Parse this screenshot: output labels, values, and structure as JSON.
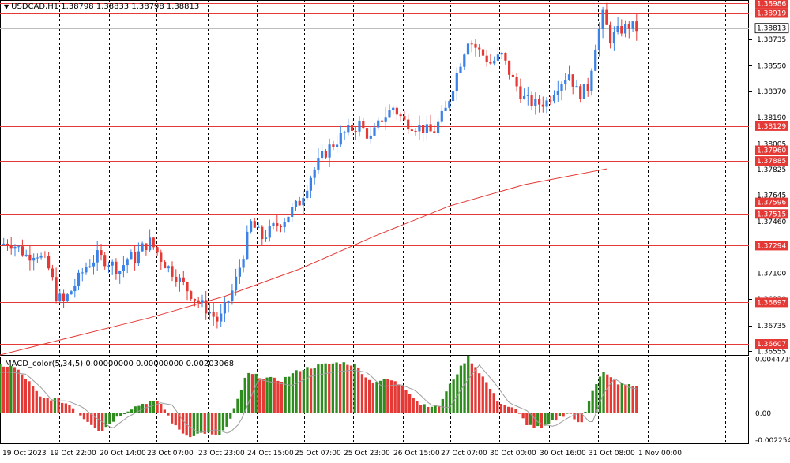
{
  "header": {
    "symbol_line": "USDCAD,H1 1.38798 1.38833 1.38798 1.38813",
    "menu_icon": "triangle-down-icon"
  },
  "indicator": {
    "label": "MACD_color(5,34,5) 0.00000000 0.00000000 0.00203068"
  },
  "colors": {
    "up_candle": "#3b82e6",
    "down_candle": "#e53935",
    "level_line": "#e53935",
    "ma_line": "#e53935",
    "macd_up": "#2e8b1e",
    "macd_down": "#e53935",
    "signal_line": "#9e9e9e",
    "grid": "#000000"
  },
  "chart_data": [
    {
      "type": "candlestick",
      "symbol": "USDCAD",
      "timeframe": "H1",
      "price_ticks": [
        "1.38735",
        "1.38550",
        "1.38370",
        "1.38190",
        "1.38005",
        "1.37825",
        "1.37645",
        "1.37460",
        "1.37280",
        "1.37100",
        "1.36920",
        "1.36735",
        "1.36555"
      ],
      "ylim": [
        1.3653,
        1.3901
      ],
      "current_price": "1.38813",
      "level_lines": [
        "1.38986",
        "1.38919",
        "1.38129",
        "1.37960",
        "1.37885",
        "1.37596",
        "1.37515",
        "1.37294",
        "1.36897",
        "1.36607"
      ],
      "time_labels": [
        "19 Oct 2023",
        "19 Oct 22:00",
        "20 Oct 14:00",
        "23 Oct 07:00",
        "23 Oct 23:00",
        "24 Oct 15:00",
        "25 Oct 07:00",
        "25 Oct 23:00",
        "26 Oct 15:00",
        "27 Oct 07:00",
        "30 Oct 00:00",
        "30 Oct 16:00",
        "31 Oct 08:00",
        "1 Nov 00:00"
      ],
      "moving_average": {
        "points": [
          [
            0.0,
            1.3653
          ],
          [
            0.1,
            1.3666
          ],
          [
            0.2,
            1.3679
          ],
          [
            0.3,
            1.3694
          ],
          [
            0.4,
            1.3713
          ],
          [
            0.5,
            1.3736
          ],
          [
            0.6,
            1.3757
          ],
          [
            0.7,
            1.3772
          ],
          [
            0.81,
            1.3783
          ]
        ]
      },
      "price_path": [
        [
          0.0,
          1.373
        ],
        [
          0.012,
          1.3732
        ],
        [
          0.024,
          1.3728
        ],
        [
          0.036,
          1.3722
        ],
        [
          0.048,
          1.3725
        ],
        [
          0.06,
          1.3718
        ],
        [
          0.068,
          1.371
        ],
        [
          0.074,
          1.3695
        ],
        [
          0.085,
          1.369
        ],
        [
          0.1,
          1.3702
        ],
        [
          0.115,
          1.3715
        ],
        [
          0.13,
          1.3722
        ],
        [
          0.145,
          1.3718
        ],
        [
          0.16,
          1.3712
        ],
        [
          0.172,
          1.3722
        ],
        [
          0.18,
          1.372
        ],
        [
          0.19,
          1.3728
        ],
        [
          0.2,
          1.3732
        ],
        [
          0.207,
          1.3727
        ],
        [
          0.218,
          1.3718
        ],
        [
          0.232,
          1.371
        ],
        [
          0.248,
          1.37
        ],
        [
          0.265,
          1.369
        ],
        [
          0.278,
          1.3684
        ],
        [
          0.292,
          1.3676
        ],
        [
          0.3,
          1.3685
        ],
        [
          0.312,
          1.37
        ],
        [
          0.322,
          1.3718
        ],
        [
          0.335,
          1.3745
        ],
        [
          0.35,
          1.3735
        ],
        [
          0.365,
          1.3742
        ],
        [
          0.38,
          1.3748
        ],
        [
          0.4,
          1.376
        ],
        [
          0.415,
          1.3778
        ],
        [
          0.428,
          1.379
        ],
        [
          0.44,
          1.3798
        ],
        [
          0.46,
          1.3808
        ],
        [
          0.48,
          1.3814
        ],
        [
          0.495,
          1.3804
        ],
        [
          0.51,
          1.3818
        ],
        [
          0.525,
          1.3826
        ],
        [
          0.54,
          1.3816
        ],
        [
          0.56,
          1.3812
        ],
        [
          0.578,
          1.3808
        ],
        [
          0.595,
          1.3824
        ],
        [
          0.61,
          1.385
        ],
        [
          0.625,
          1.3874
        ],
        [
          0.64,
          1.3865
        ],
        [
          0.655,
          1.3857
        ],
        [
          0.67,
          1.3862
        ],
        [
          0.685,
          1.3845
        ],
        [
          0.7,
          1.3832
        ],
        [
          0.715,
          1.3828
        ],
        [
          0.73,
          1.383
        ],
        [
          0.745,
          1.3842
        ],
        [
          0.76,
          1.385
        ],
        [
          0.772,
          1.3835
        ],
        [
          0.785,
          1.384
        ],
        [
          0.795,
          1.387
        ],
        [
          0.805,
          1.389
        ],
        [
          0.815,
          1.3874
        ],
        [
          0.828,
          1.388
        ],
        [
          0.84,
          1.3883
        ],
        [
          0.85,
          1.3881
        ]
      ]
    },
    {
      "type": "bar",
      "name": "MACD_color(5,34,5)",
      "y_ticks": [
        "0.00447197",
        "0.00",
        "-0.00225418"
      ],
      "ylim": [
        -0.0025,
        0.0047
      ],
      "histogram_path": [
        [
          0.0,
          0.004
        ],
        [
          0.02,
          0.0038
        ],
        [
          0.04,
          0.0025
        ],
        [
          0.055,
          0.0012
        ],
        [
          0.075,
          0.0012
        ],
        [
          0.095,
          0.0006
        ],
        [
          0.11,
          -0.0003
        ],
        [
          0.135,
          -0.0015
        ],
        [
          0.155,
          -0.0004
        ],
        [
          0.175,
          0.0004
        ],
        [
          0.2,
          0.001
        ],
        [
          0.215,
          0.0008
        ],
        [
          0.232,
          -0.001
        ],
        [
          0.25,
          -0.0019
        ],
        [
          0.275,
          -0.0016
        ],
        [
          0.29,
          -0.002
        ],
        [
          0.305,
          -0.001
        ],
        [
          0.318,
          0.0012
        ],
        [
          0.33,
          0.0033
        ],
        [
          0.35,
          0.003
        ],
        [
          0.375,
          0.0027
        ],
        [
          0.4,
          0.0036
        ],
        [
          0.43,
          0.004
        ],
        [
          0.455,
          0.0042
        ],
        [
          0.475,
          0.004
        ],
        [
          0.495,
          0.0026
        ],
        [
          0.52,
          0.0028
        ],
        [
          0.54,
          0.0022
        ],
        [
          0.56,
          0.0008
        ],
        [
          0.585,
          0.0005
        ],
        [
          0.605,
          0.0028
        ],
        [
          0.625,
          0.0047
        ],
        [
          0.645,
          0.003
        ],
        [
          0.665,
          0.001
        ],
        [
          0.69,
          0.0002
        ],
        [
          0.705,
          -0.001
        ],
        [
          0.725,
          -0.0013
        ],
        [
          0.745,
          -0.0004
        ],
        [
          0.76,
          0.0001
        ],
        [
          0.775,
          -0.0011
        ],
        [
          0.79,
          0.0018
        ],
        [
          0.805,
          0.0034
        ],
        [
          0.825,
          0.0025
        ],
        [
          0.85,
          0.0022
        ]
      ]
    }
  ]
}
